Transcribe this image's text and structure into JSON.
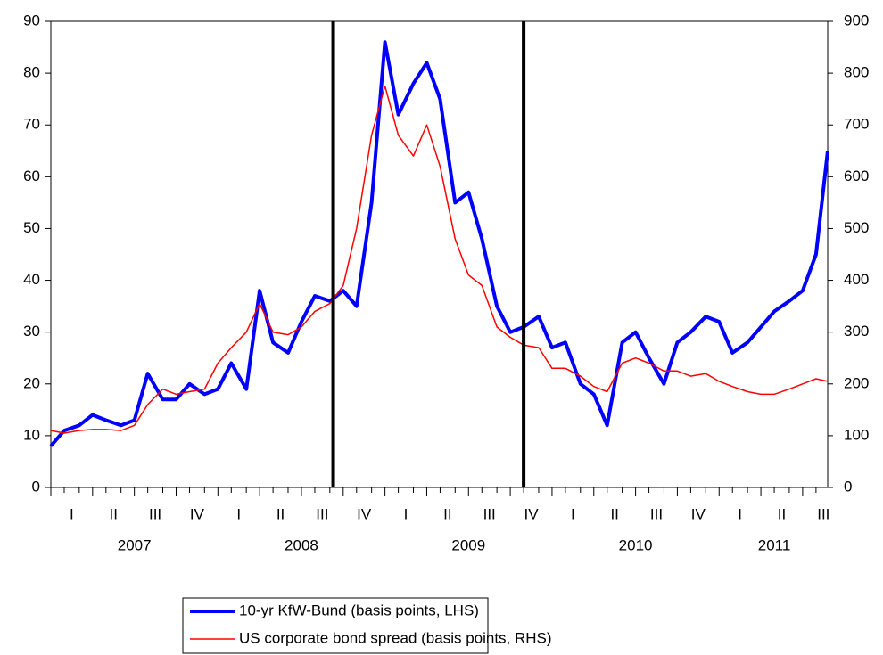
{
  "chart_data": {
    "type": "line",
    "x": [
      2007.0,
      2007.08,
      2007.17,
      2007.25,
      2007.33,
      2007.42,
      2007.5,
      2007.58,
      2007.67,
      2007.75,
      2007.83,
      2007.92,
      2008.0,
      2008.08,
      2008.17,
      2008.25,
      2008.33,
      2008.42,
      2008.5,
      2008.58,
      2008.67,
      2008.75,
      2008.83,
      2008.92,
      2009.0,
      2009.08,
      2009.17,
      2009.25,
      2009.33,
      2009.42,
      2009.5,
      2009.58,
      2009.67,
      2009.75,
      2009.83,
      2009.92,
      2010.0,
      2010.08,
      2010.17,
      2010.25,
      2010.33,
      2010.42,
      2010.5,
      2010.58,
      2010.67,
      2010.75,
      2010.83,
      2010.92,
      2011.0,
      2011.08,
      2011.17,
      2011.25,
      2011.33,
      2011.42,
      2011.5,
      2011.58,
      2011.65
    ],
    "series": [
      {
        "name": "10-yr KfW-Bund (basis points, LHS)",
        "color": "#0000ff",
        "width": 4,
        "values": [
          8,
          11,
          12,
          14,
          13,
          12,
          13,
          22,
          17,
          17,
          20,
          18,
          19,
          24,
          19,
          38,
          28,
          26,
          32,
          37,
          36,
          38,
          35,
          55,
          86,
          72,
          78,
          82,
          75,
          55,
          57,
          48,
          35,
          30,
          31,
          33,
          27,
          28,
          20,
          18,
          12,
          28,
          30,
          25,
          20,
          28,
          30,
          33,
          32,
          26,
          28,
          31,
          34,
          36,
          38,
          45,
          65
        ]
      },
      {
        "name": "US corporate bond spread (basis points, RHS)",
        "color": "#ff0000",
        "width": 1.5,
        "axis": "y2",
        "values": [
          110,
          105,
          110,
          112,
          112,
          110,
          120,
          160,
          190,
          180,
          185,
          190,
          240,
          270,
          300,
          355,
          300,
          295,
          310,
          340,
          355,
          390,
          500,
          680,
          775,
          680,
          640,
          700,
          620,
          480,
          410,
          390,
          310,
          290,
          275,
          270,
          230,
          230,
          215,
          195,
          185,
          240,
          250,
          240,
          225,
          225,
          215,
          220,
          205,
          195,
          185,
          180,
          180,
          190,
          200,
          210,
          205
        ]
      }
    ],
    "xlim": [
      2007.0,
      2011.65
    ],
    "xticks": [
      2007.0,
      2007.08,
      2007.17,
      2007.25,
      2007.33,
      2007.42,
      2007.5,
      2007.58,
      2007.67,
      2007.75,
      2007.83,
      2007.92,
      2008.0,
      2008.08,
      2008.17,
      2008.25,
      2008.33,
      2008.42,
      2008.5,
      2008.58,
      2008.67,
      2008.75,
      2008.83,
      2008.92,
      2009.0,
      2009.08,
      2009.17,
      2009.25,
      2009.33,
      2009.42,
      2009.5,
      2009.58,
      2009.67,
      2009.75,
      2009.83,
      2009.92,
      2010.0,
      2010.08,
      2010.17,
      2010.25,
      2010.33,
      2010.42,
      2010.5,
      2010.58,
      2010.67,
      2010.75,
      2010.83,
      2010.92,
      2011.0,
      2011.08,
      2011.17,
      2011.25,
      2011.33,
      2011.42,
      2011.5,
      2011.58
    ],
    "quarter_labels": [
      {
        "value": 2007.125,
        "label": "I"
      },
      {
        "value": 2007.375,
        "label": "II"
      },
      {
        "value": 2007.625,
        "label": "III"
      },
      {
        "value": 2007.875,
        "label": "IV"
      },
      {
        "value": 2008.125,
        "label": "I"
      },
      {
        "value": 2008.375,
        "label": "II"
      },
      {
        "value": 2008.625,
        "label": "III"
      },
      {
        "value": 2008.875,
        "label": "IV"
      },
      {
        "value": 2009.125,
        "label": "I"
      },
      {
        "value": 2009.375,
        "label": "II"
      },
      {
        "value": 2009.625,
        "label": "III"
      },
      {
        "value": 2009.875,
        "label": "IV"
      },
      {
        "value": 2010.125,
        "label": "I"
      },
      {
        "value": 2010.375,
        "label": "II"
      },
      {
        "value": 2010.625,
        "label": "III"
      },
      {
        "value": 2010.875,
        "label": "IV"
      },
      {
        "value": 2011.125,
        "label": "I"
      },
      {
        "value": 2011.375,
        "label": "II"
      },
      {
        "value": 2011.625,
        "label": "III"
      }
    ],
    "year_labels": [
      {
        "value": 2007.5,
        "label": "2007"
      },
      {
        "value": 2008.5,
        "label": "2008"
      },
      {
        "value": 2009.5,
        "label": "2009"
      },
      {
        "value": 2010.5,
        "label": "2010"
      },
      {
        "value": 2011.33,
        "label": "2011"
      }
    ],
    "vlines": [
      2008.69,
      2009.83
    ],
    "ylim": [
      0,
      90
    ],
    "yticks": [
      0,
      10,
      20,
      30,
      40,
      50,
      60,
      70,
      80,
      90
    ],
    "y2lim": [
      0,
      900
    ],
    "y2ticks": [
      0,
      100,
      200,
      300,
      400,
      500,
      600,
      700,
      800,
      900
    ],
    "grid": false,
    "legend": "bottom"
  }
}
